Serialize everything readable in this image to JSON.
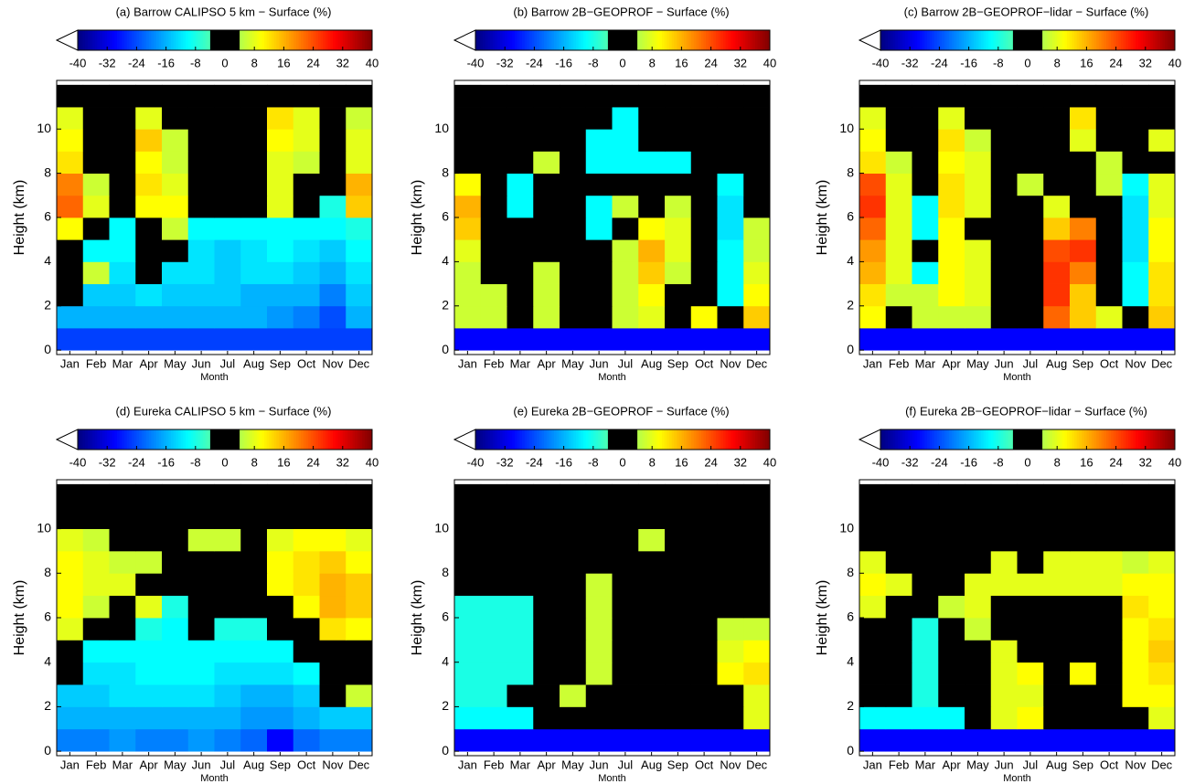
{
  "chart_data": [
    {
      "type": "heatmap",
      "title": "(a) Barrow CALIPSO 5 km − Surface (%)",
      "xlabel": "Month",
      "ylabel": "Height (km)",
      "categories": [
        "Jan",
        "Feb",
        "Mar",
        "Apr",
        "May",
        "Jun",
        "Jul",
        "Aug",
        "Sep",
        "Oct",
        "Nov",
        "Dec"
      ],
      "y": [
        0.5,
        1.5,
        2.5,
        3.5,
        4.5,
        5.5,
        6.5,
        7.5,
        8.5,
        9.5,
        10.5,
        11.5
      ],
      "values": [
        [
          -25,
          -25,
          -25,
          -25,
          -25,
          -25,
          -25,
          -25,
          -25,
          -25,
          -25,
          -25
        ],
        [
          -16,
          -16,
          -16,
          -16,
          -16,
          -16,
          -16,
          -16,
          -18,
          -20,
          -24,
          -16
        ],
        [
          0,
          -14,
          -14,
          -12,
          -14,
          -14,
          -14,
          -16,
          -16,
          -16,
          -20,
          -14
        ],
        [
          0,
          6,
          -12,
          0,
          -12,
          -12,
          -14,
          -12,
          -12,
          -14,
          -16,
          -12
        ],
        [
          0,
          -10,
          -10,
          0,
          0,
          -12,
          -14,
          -12,
          -10,
          -12,
          -14,
          -10
        ],
        [
          10,
          0,
          -10,
          0,
          6,
          -10,
          -10,
          -10,
          -10,
          -10,
          -10,
          -8
        ],
        [
          22,
          8,
          0,
          10,
          10,
          0,
          0,
          0,
          8,
          0,
          -8,
          14
        ],
        [
          20,
          6,
          0,
          12,
          8,
          0,
          0,
          0,
          8,
          0,
          0,
          16
        ],
        [
          12,
          0,
          0,
          10,
          6,
          0,
          0,
          0,
          8,
          6,
          0,
          8
        ],
        [
          10,
          0,
          0,
          14,
          6,
          0,
          0,
          0,
          10,
          8,
          0,
          8
        ],
        [
          8,
          0,
          0,
          8,
          0,
          0,
          0,
          0,
          12,
          8,
          0,
          6
        ],
        [
          0,
          0,
          0,
          0,
          0,
          0,
          0,
          0,
          0,
          0,
          0,
          0
        ]
      ],
      "ylim": [
        -0.2,
        12.2
      ],
      "yticks": [
        0,
        2,
        4,
        6,
        8,
        10
      ],
      "clim": [
        -40,
        40
      ],
      "cticks": [
        -40,
        -32,
        -24,
        -16,
        -8,
        0,
        8,
        16,
        24,
        32,
        40
      ]
    },
    {
      "type": "heatmap",
      "title": "(b) Barrow 2B−GEOPROF − Surface (%)",
      "xlabel": "Month",
      "ylabel": "Height (km)",
      "categories": [
        "Jan",
        "Feb",
        "Mar",
        "Apr",
        "May",
        "Jun",
        "Jul",
        "Aug",
        "Sep",
        "Oct",
        "Nov",
        "Dec"
      ],
      "y": [
        0.5,
        1.5,
        2.5,
        3.5,
        4.5,
        5.5,
        6.5,
        7.5,
        8.5,
        9.5,
        10.5,
        11.5
      ],
      "values": [
        [
          -30,
          -30,
          -30,
          -30,
          -30,
          -30,
          -30,
          -30,
          -30,
          -30,
          -30,
          -30
        ],
        [
          6,
          6,
          0,
          6,
          0,
          0,
          6,
          8,
          0,
          10,
          0,
          14
        ],
        [
          6,
          6,
          0,
          6,
          0,
          0,
          6,
          10,
          0,
          0,
          -10,
          10
        ],
        [
          6,
          0,
          0,
          6,
          0,
          0,
          6,
          14,
          6,
          0,
          -10,
          8
        ],
        [
          8,
          0,
          0,
          0,
          0,
          0,
          6,
          16,
          8,
          0,
          -10,
          6
        ],
        [
          14,
          0,
          0,
          0,
          0,
          -10,
          0,
          10,
          8,
          0,
          -12,
          6
        ],
        [
          16,
          0,
          -10,
          0,
          0,
          -10,
          6,
          0,
          6,
          0,
          -12,
          0
        ],
        [
          10,
          0,
          -10,
          0,
          0,
          0,
          0,
          0,
          0,
          0,
          -10,
          0
        ],
        [
          0,
          0,
          0,
          6,
          0,
          -10,
          -10,
          -10,
          -10,
          0,
          0,
          0
        ],
        [
          0,
          0,
          0,
          0,
          0,
          -10,
          -10,
          0,
          0,
          0,
          0,
          0
        ],
        [
          0,
          0,
          0,
          0,
          0,
          0,
          -10,
          0,
          0,
          0,
          0,
          0
        ],
        [
          0,
          0,
          0,
          0,
          0,
          0,
          0,
          0,
          0,
          0,
          0,
          0
        ]
      ],
      "ylim": [
        -0.2,
        12.2
      ],
      "yticks": [
        0,
        2,
        4,
        6,
        8,
        10
      ],
      "clim": [
        -40,
        40
      ],
      "cticks": [
        -40,
        -32,
        -24,
        -16,
        -8,
        0,
        8,
        16,
        24,
        32,
        40
      ]
    },
    {
      "type": "heatmap",
      "title": "(c) Barrow 2B−GEOPROF−lidar − Surface (%)",
      "xlabel": "Month",
      "ylabel": "Height (km)",
      "categories": [
        "Jan",
        "Feb",
        "Mar",
        "Apr",
        "May",
        "Jun",
        "Jul",
        "Aug",
        "Sep",
        "Oct",
        "Nov",
        "Dec"
      ],
      "y": [
        0.5,
        1.5,
        2.5,
        3.5,
        4.5,
        5.5,
        6.5,
        7.5,
        8.5,
        9.5,
        10.5,
        11.5
      ],
      "values": [
        [
          -30,
          -30,
          -30,
          -30,
          -30,
          -30,
          -30,
          -30,
          -30,
          -30,
          -30,
          -30
        ],
        [
          10,
          0,
          6,
          6,
          6,
          0,
          0,
          22,
          14,
          8,
          0,
          14
        ],
        [
          12,
          6,
          6,
          10,
          8,
          0,
          0,
          26,
          14,
          0,
          -10,
          12
        ],
        [
          16,
          8,
          -10,
          10,
          8,
          0,
          0,
          26,
          20,
          0,
          -10,
          12
        ],
        [
          18,
          8,
          0,
          10,
          8,
          0,
          0,
          24,
          26,
          0,
          -12,
          10
        ],
        [
          22,
          8,
          -10,
          10,
          0,
          0,
          0,
          14,
          20,
          0,
          -12,
          10
        ],
        [
          26,
          8,
          -10,
          12,
          8,
          0,
          0,
          8,
          0,
          0,
          -12,
          8
        ],
        [
          24,
          8,
          0,
          12,
          8,
          0,
          6,
          0,
          0,
          6,
          -10,
          8
        ],
        [
          12,
          6,
          0,
          10,
          8,
          0,
          0,
          0,
          0,
          6,
          0,
          0
        ],
        [
          10,
          0,
          0,
          12,
          6,
          0,
          0,
          0,
          8,
          0,
          0,
          8
        ],
        [
          8,
          0,
          0,
          8,
          0,
          0,
          0,
          0,
          12,
          0,
          0,
          0
        ],
        [
          0,
          0,
          0,
          0,
          0,
          0,
          0,
          0,
          0,
          0,
          0,
          0
        ]
      ],
      "ylim": [
        -0.2,
        12.2
      ],
      "yticks": [
        0,
        2,
        4,
        6,
        8,
        10
      ],
      "clim": [
        -40,
        40
      ],
      "cticks": [
        -40,
        -32,
        -24,
        -16,
        -8,
        0,
        8,
        16,
        24,
        32,
        40
      ]
    },
    {
      "type": "heatmap",
      "title": "(d) Eureka CALIPSO 5 km − Surface (%)",
      "xlabel": "Month",
      "ylabel": "Height (km)",
      "categories": [
        "Jan",
        "Feb",
        "Mar",
        "Apr",
        "May",
        "Jun",
        "Jul",
        "Aug",
        "Sep",
        "Oct",
        "Nov",
        "Dec"
      ],
      "y": [
        0.5,
        1.5,
        2.5,
        3.5,
        4.5,
        5.5,
        6.5,
        7.5,
        8.5,
        9.5,
        10.5,
        11.5
      ],
      "values": [
        [
          -20,
          -20,
          -18,
          -20,
          -20,
          -18,
          -20,
          -22,
          -30,
          -22,
          -20,
          -20
        ],
        [
          -16,
          -16,
          -16,
          -16,
          -16,
          -16,
          -16,
          -18,
          -18,
          -16,
          -14,
          -14
        ],
        [
          -14,
          -14,
          -12,
          -12,
          -12,
          -12,
          -14,
          -16,
          -16,
          -14,
          0,
          6
        ],
        [
          0,
          -12,
          -12,
          -10,
          -10,
          -10,
          -12,
          -12,
          -12,
          -10,
          0,
          0
        ],
        [
          0,
          -10,
          -10,
          -10,
          -10,
          -10,
          -10,
          -10,
          -10,
          0,
          0,
          0
        ],
        [
          8,
          0,
          0,
          -8,
          -10,
          0,
          -8,
          -8,
          0,
          0,
          12,
          10
        ],
        [
          10,
          6,
          0,
          8,
          -8,
          0,
          0,
          0,
          0,
          10,
          16,
          14
        ],
        [
          10,
          8,
          8,
          0,
          0,
          0,
          0,
          0,
          10,
          12,
          16,
          14
        ],
        [
          10,
          8,
          6,
          6,
          0,
          0,
          0,
          0,
          10,
          12,
          14,
          10
        ],
        [
          8,
          6,
          0,
          0,
          0,
          6,
          6,
          0,
          8,
          10,
          10,
          8
        ],
        [
          0,
          0,
          0,
          0,
          0,
          0,
          0,
          0,
          0,
          0,
          0,
          0
        ],
        [
          0,
          0,
          0,
          0,
          0,
          0,
          0,
          0,
          0,
          0,
          0,
          0
        ]
      ],
      "ylim": [
        -0.2,
        12.2
      ],
      "yticks": [
        0,
        2,
        4,
        6,
        8,
        10
      ],
      "clim": [
        -40,
        40
      ],
      "cticks": [
        -40,
        -32,
        -24,
        -16,
        -8,
        0,
        8,
        16,
        24,
        32,
        40
      ]
    },
    {
      "type": "heatmap",
      "title": "(e) Eureka 2B−GEOPROF − Surface (%)",
      "xlabel": "Month",
      "ylabel": "Height (km)",
      "categories": [
        "Jan",
        "Feb",
        "Mar",
        "Apr",
        "May",
        "Jun",
        "Jul",
        "Aug",
        "Sep",
        "Oct",
        "Nov",
        "Dec"
      ],
      "y": [
        0.5,
        1.5,
        2.5,
        3.5,
        4.5,
        5.5,
        6.5,
        7.5,
        8.5,
        9.5,
        10.5,
        11.5
      ],
      "values": [
        [
          -30,
          -30,
          -30,
          -30,
          -30,
          -30,
          -30,
          -30,
          -30,
          -30,
          -30,
          -30
        ],
        [
          -10,
          -10,
          -10,
          0,
          0,
          0,
          0,
          0,
          0,
          0,
          0,
          8
        ],
        [
          -8,
          -8,
          0,
          0,
          6,
          0,
          0,
          0,
          0,
          0,
          0,
          8
        ],
        [
          -8,
          -8,
          -8,
          0,
          0,
          6,
          0,
          0,
          0,
          0,
          10,
          12
        ],
        [
          -8,
          -8,
          -8,
          0,
          0,
          6,
          0,
          0,
          0,
          0,
          8,
          10
        ],
        [
          -8,
          -8,
          -8,
          0,
          0,
          6,
          0,
          0,
          0,
          0,
          6,
          6
        ],
        [
          -8,
          -8,
          -8,
          0,
          0,
          6,
          0,
          0,
          0,
          0,
          0,
          0
        ],
        [
          0,
          0,
          0,
          0,
          0,
          6,
          0,
          0,
          0,
          0,
          0,
          0
        ],
        [
          0,
          0,
          0,
          0,
          0,
          0,
          0,
          0,
          0,
          0,
          0,
          0
        ],
        [
          0,
          0,
          0,
          0,
          0,
          0,
          0,
          6,
          0,
          0,
          0,
          0
        ],
        [
          0,
          0,
          0,
          0,
          0,
          0,
          0,
          0,
          0,
          0,
          0,
          0
        ],
        [
          0,
          0,
          0,
          0,
          0,
          0,
          0,
          0,
          0,
          0,
          0,
          0
        ]
      ],
      "ylim": [
        -0.2,
        12.2
      ],
      "yticks": [
        0,
        2,
        4,
        6,
        8,
        10
      ],
      "clim": [
        -40,
        40
      ],
      "cticks": [
        -40,
        -32,
        -24,
        -16,
        -8,
        0,
        8,
        16,
        24,
        32,
        40
      ]
    },
    {
      "type": "heatmap",
      "title": "(f) Eureka 2B−GEOPROF−lidar − Surface (%)",
      "xlabel": "Month",
      "ylabel": "Height (km)",
      "categories": [
        "Jan",
        "Feb",
        "Mar",
        "Apr",
        "May",
        "Jun",
        "Jul",
        "Aug",
        "Sep",
        "Oct",
        "Nov",
        "Dec"
      ],
      "y": [
        0.5,
        1.5,
        2.5,
        3.5,
        4.5,
        5.5,
        6.5,
        7.5,
        8.5,
        9.5,
        10.5,
        11.5
      ],
      "values": [
        [
          -30,
          -30,
          -30,
          -30,
          -30,
          -30,
          -30,
          -30,
          -30,
          -30,
          -30,
          -30
        ],
        [
          -10,
          -10,
          -10,
          -10,
          0,
          8,
          10,
          0,
          0,
          0,
          0,
          8
        ],
        [
          0,
          0,
          -8,
          0,
          0,
          8,
          8,
          0,
          0,
          0,
          10,
          10
        ],
        [
          0,
          0,
          -8,
          0,
          0,
          8,
          10,
          0,
          10,
          0,
          10,
          12
        ],
        [
          0,
          0,
          -8,
          0,
          0,
          8,
          0,
          0,
          0,
          0,
          10,
          14
        ],
        [
          0,
          0,
          -8,
          0,
          6,
          0,
          0,
          0,
          0,
          0,
          10,
          12
        ],
        [
          8,
          0,
          0,
          6,
          8,
          0,
          0,
          0,
          0,
          0,
          12,
          10
        ],
        [
          10,
          8,
          0,
          0,
          8,
          8,
          8,
          8,
          8,
          8,
          10,
          10
        ],
        [
          8,
          0,
          0,
          0,
          0,
          8,
          0,
          8,
          8,
          8,
          6,
          8
        ],
        [
          0,
          0,
          0,
          0,
          0,
          0,
          0,
          0,
          0,
          0,
          0,
          0
        ],
        [
          0,
          0,
          0,
          0,
          0,
          0,
          0,
          0,
          0,
          0,
          0,
          0
        ],
        [
          0,
          0,
          0,
          0,
          0,
          0,
          0,
          0,
          0,
          0,
          0,
          0
        ]
      ],
      "ylim": [
        -0.2,
        12.2
      ],
      "yticks": [
        0,
        2,
        4,
        6,
        8,
        10
      ],
      "clim": [
        -40,
        40
      ],
      "cticks": [
        -40,
        -32,
        -24,
        -16,
        -8,
        0,
        8,
        16,
        24,
        32,
        40
      ]
    }
  ]
}
